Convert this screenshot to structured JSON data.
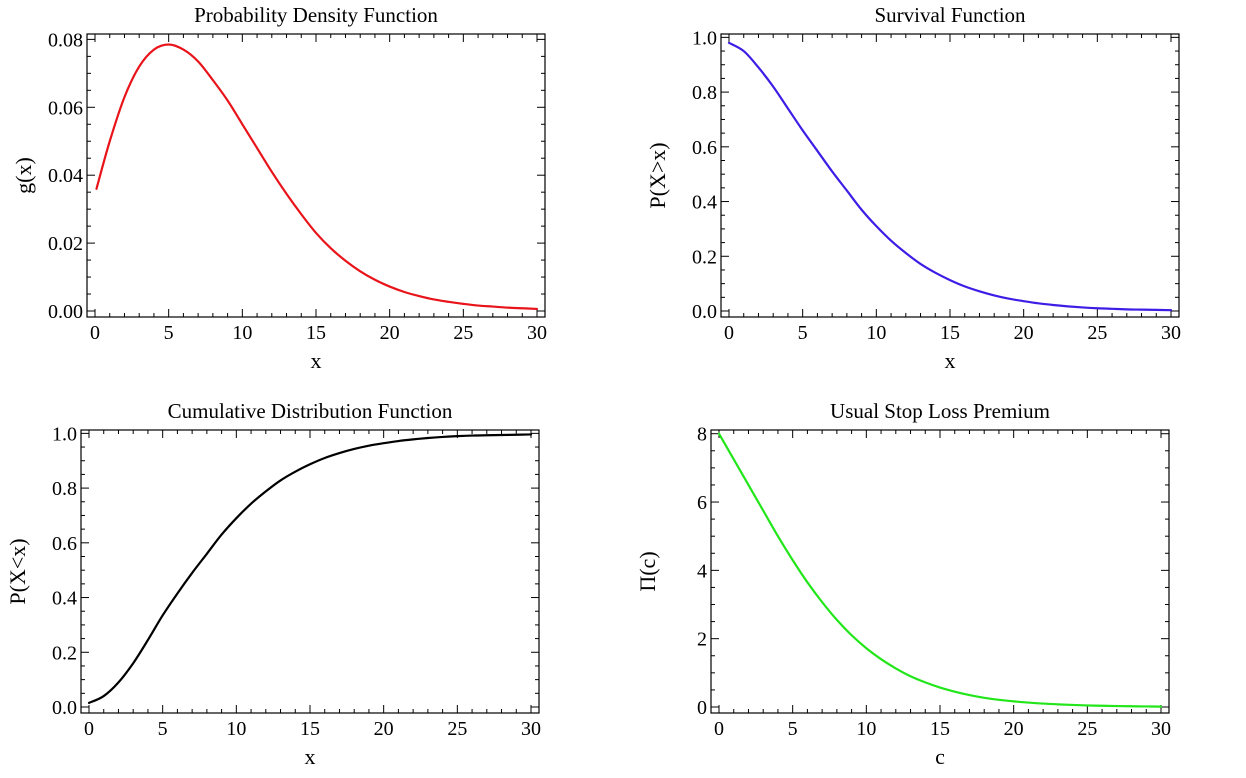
{
  "chart_data": [
    {
      "type": "line",
      "title": "Probability Density Function",
      "xlabel": "x",
      "ylabel": "g(x)",
      "xlim": [
        0,
        30
      ],
      "ylim": [
        0,
        0.081
      ],
      "xticks": [
        0,
        5,
        10,
        15,
        20,
        25,
        30
      ],
      "xtick_labels": [
        "0",
        "5",
        "10",
        "15",
        "20",
        "25",
        "30"
      ],
      "yticks": [
        0,
        0.02,
        0.04,
        0.06,
        0.08
      ],
      "ytick_labels": [
        "0.00",
        "0.02",
        "0.04",
        "0.06",
        "0.08"
      ],
      "grid": false,
      "color": "#e8141a",
      "series": [
        {
          "x": [
            0.1,
            1,
            2,
            3,
            4,
            5,
            6,
            7,
            8,
            9,
            10,
            11,
            12,
            13,
            14,
            15,
            16,
            17,
            18,
            19,
            20,
            21,
            22,
            23,
            24,
            25,
            26,
            27,
            28,
            29,
            30
          ],
          "values": [
            0.036,
            0.05,
            0.063,
            0.072,
            0.077,
            0.0785,
            0.077,
            0.0735,
            0.068,
            0.062,
            0.055,
            0.048,
            0.041,
            0.0345,
            0.0285,
            0.023,
            0.0185,
            0.0148,
            0.0117,
            0.0092,
            0.0072,
            0.0056,
            0.0044,
            0.0034,
            0.0027,
            0.0021,
            0.0016,
            0.0013,
            0.001,
            0.0008,
            0.0006
          ]
        }
      ]
    },
    {
      "type": "line",
      "title": "Survival Function",
      "xlabel": "x",
      "ylabel": "P(X>x)",
      "xlim": [
        0,
        30
      ],
      "ylim": [
        0,
        1.005
      ],
      "xticks": [
        0,
        5,
        10,
        15,
        20,
        25,
        30
      ],
      "xtick_labels": [
        "0",
        "5",
        "10",
        "15",
        "20",
        "25",
        "30"
      ],
      "yticks": [
        0,
        0.2,
        0.4,
        0.6,
        0.8,
        1.0
      ],
      "ytick_labels": [
        "0.0",
        "0.2",
        "0.4",
        "0.6",
        "0.8",
        "1.0"
      ],
      "grid": false,
      "color": "#3d1ee6",
      "series": [
        {
          "x": [
            0,
            1,
            2,
            3,
            4,
            5,
            6,
            7,
            8,
            9,
            10,
            11,
            12,
            13,
            14,
            15,
            16,
            17,
            18,
            19,
            20,
            21,
            22,
            23,
            24,
            25,
            26,
            27,
            28,
            29,
            30
          ],
          "values": [
            0.98,
            0.95,
            0.89,
            0.82,
            0.74,
            0.66,
            0.585,
            0.51,
            0.44,
            0.37,
            0.31,
            0.257,
            0.212,
            0.172,
            0.14,
            0.113,
            0.09,
            0.072,
            0.057,
            0.045,
            0.036,
            0.028,
            0.022,
            0.017,
            0.013,
            0.01,
            0.008,
            0.006,
            0.005,
            0.004,
            0.003
          ]
        }
      ]
    },
    {
      "type": "line",
      "title": "Cumulative Distribution Function",
      "xlabel": "x",
      "ylabel": "P(X<x)",
      "xlim": [
        0,
        30
      ],
      "ylim": [
        0,
        1.005
      ],
      "xticks": [
        0,
        5,
        10,
        15,
        20,
        25,
        30
      ],
      "xtick_labels": [
        "0",
        "5",
        "10",
        "15",
        "20",
        "25",
        "30"
      ],
      "yticks": [
        0,
        0.2,
        0.4,
        0.6,
        0.8,
        1.0
      ],
      "ytick_labels": [
        "0.0",
        "0.2",
        "0.4",
        "0.6",
        "0.8",
        "1.0"
      ],
      "grid": false,
      "color": "#000000",
      "series": [
        {
          "x": [
            0,
            1,
            2,
            3,
            4,
            5,
            6,
            7,
            8,
            9,
            10,
            11,
            12,
            13,
            14,
            15,
            16,
            17,
            18,
            19,
            20,
            21,
            22,
            23,
            24,
            25,
            26,
            27,
            28,
            29,
            30
          ],
          "values": [
            0.015,
            0.04,
            0.09,
            0.16,
            0.245,
            0.335,
            0.415,
            0.49,
            0.56,
            0.63,
            0.69,
            0.743,
            0.788,
            0.828,
            0.86,
            0.887,
            0.91,
            0.928,
            0.943,
            0.955,
            0.964,
            0.972,
            0.978,
            0.983,
            0.987,
            0.99,
            0.992,
            0.993,
            0.994,
            0.995,
            0.996
          ]
        }
      ]
    },
    {
      "type": "line",
      "title": "Usual Stop Loss Premium",
      "xlabel": "c",
      "ylabel": "Π(c)",
      "xlim": [
        0,
        30
      ],
      "ylim": [
        0,
        8.05
      ],
      "xticks": [
        0,
        5,
        10,
        15,
        20,
        25,
        30
      ],
      "xtick_labels": [
        "0",
        "5",
        "10",
        "15",
        "20",
        "25",
        "30"
      ],
      "yticks": [
        0,
        2,
        4,
        6,
        8
      ],
      "ytick_labels": [
        "0",
        "2",
        "4",
        "6",
        "8"
      ],
      "grid": false,
      "color": "#22e61a",
      "series": [
        {
          "x": [
            0,
            1,
            2,
            3,
            4,
            5,
            6,
            7,
            8,
            9,
            10,
            11,
            12,
            13,
            14,
            15,
            16,
            17,
            18,
            19,
            20,
            21,
            22,
            23,
            24,
            25,
            26,
            27,
            28,
            29,
            30
          ],
          "values": [
            8.0,
            7.25,
            6.5,
            5.75,
            5.0,
            4.3,
            3.65,
            3.07,
            2.55,
            2.1,
            1.72,
            1.4,
            1.13,
            0.9,
            0.72,
            0.57,
            0.45,
            0.35,
            0.27,
            0.21,
            0.165,
            0.13,
            0.1,
            0.078,
            0.06,
            0.046,
            0.036,
            0.028,
            0.021,
            0.016,
            0.012
          ]
        }
      ]
    }
  ]
}
